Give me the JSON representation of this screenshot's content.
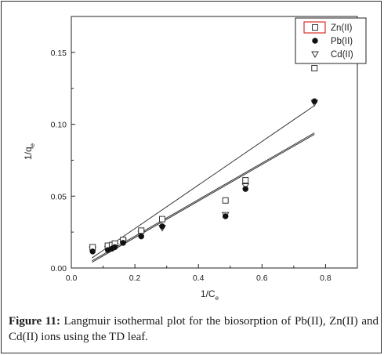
{
  "chart_data": {
    "type": "scatter",
    "xlabel": "1/C",
    "xlabel_sub": "e",
    "ylabel": "1/q",
    "ylabel_sub": "e",
    "xlim": [
      0.0,
      0.9
    ],
    "ylim": [
      0.0,
      0.175
    ],
    "x_ticks": [
      0.0,
      0.2,
      0.4,
      0.6,
      0.8
    ],
    "x_tick_labels": [
      "0.0",
      "0.2",
      "0.4",
      "0.6",
      "0.8"
    ],
    "y_ticks": [
      0.0,
      0.05,
      0.1,
      0.15
    ],
    "y_tick_labels": [
      "0.00",
      "0.05",
      "0.10",
      "0.15"
    ],
    "grid": false,
    "legend_position": "top-right",
    "series": [
      {
        "name": "Zn(II)",
        "marker": "open-square",
        "x": [
          0.067,
          0.115,
          0.128,
          0.137,
          0.163,
          0.22,
          0.286,
          0.485,
          0.548,
          0.765
        ],
        "y": [
          0.0145,
          0.0155,
          0.016,
          0.017,
          0.0195,
          0.026,
          0.034,
          0.047,
          0.061,
          0.139
        ]
      },
      {
        "name": "Pb(II)",
        "marker": "filled-circle",
        "x": [
          0.067,
          0.115,
          0.128,
          0.137,
          0.163,
          0.22,
          0.286,
          0.485,
          0.548,
          0.765
        ],
        "y": [
          0.0115,
          0.0125,
          0.0135,
          0.0145,
          0.0175,
          0.022,
          0.029,
          0.036,
          0.055,
          0.116
        ]
      },
      {
        "name": "Cd(II)",
        "marker": "open-triangle-down",
        "x": [
          0.067,
          0.115,
          0.128,
          0.137,
          0.163,
          0.22,
          0.286,
          0.485,
          0.548,
          0.765
        ],
        "y": [
          0.013,
          0.0135,
          0.0145,
          0.0155,
          0.0185,
          0.024,
          0.028,
          0.037,
          0.057,
          0.115
        ]
      }
    ],
    "fit_lines": [
      {
        "x": [
          0.065,
          0.765
        ],
        "y": [
          0.007,
          0.113
        ]
      },
      {
        "x": [
          0.065,
          0.765
        ],
        "y": [
          0.005,
          0.094
        ]
      },
      {
        "x": [
          0.065,
          0.765
        ],
        "y": [
          0.004,
          0.093
        ]
      }
    ]
  },
  "caption": {
    "label": "Figure 11:",
    "text": "Langmuir isothermal plot for the biosorption of Pb(II), Zn(II) and Cd(II) ions using the TD leaf."
  }
}
